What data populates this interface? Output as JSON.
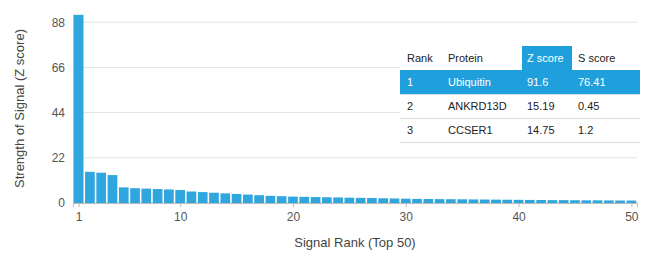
{
  "chart_data": {
    "type": "bar",
    "x_label": "Signal Rank (Top 50)",
    "y_label": "Strength of Signal (Z score)",
    "x": [
      1,
      2,
      3,
      4,
      5,
      6,
      7,
      8,
      9,
      10,
      11,
      12,
      13,
      14,
      15,
      16,
      17,
      18,
      19,
      20,
      21,
      22,
      23,
      24,
      25,
      26,
      27,
      28,
      29,
      30,
      31,
      32,
      33,
      34,
      35,
      36,
      37,
      38,
      39,
      40,
      41,
      42,
      43,
      44,
      45,
      46,
      47,
      48,
      49,
      50
    ],
    "values": [
      91.6,
      15.19,
      14.75,
      13.6,
      7.6,
      7.2,
      7,
      6.8,
      6.6,
      6.3,
      5.6,
      5.3,
      5,
      4.7,
      4.4,
      4.1,
      3.8,
      3.5,
      3.3,
      3.1,
      3,
      2.9,
      2.8,
      2.7,
      2.6,
      2.5,
      2.4,
      2.3,
      2.2,
      2.1,
      2,
      1.95,
      1.9,
      1.85,
      1.8,
      1.75,
      1.7,
      1.65,
      1.6,
      1.55,
      1.5,
      1.45,
      1.4,
      1.4,
      1.35,
      1.3,
      1.3,
      1.25,
      1.2,
      1.2
    ],
    "color": "#2fa6de",
    "xlim": [
      0.5,
      50.5
    ],
    "xticks": [
      1,
      10,
      20,
      30,
      40,
      50
    ],
    "ylim": [
      0,
      92
    ],
    "yticks": [
      0,
      22,
      44,
      66,
      88
    ],
    "grid": true
  },
  "table": {
    "header": [
      "Rank",
      "Protein",
      "Z score",
      "S score"
    ],
    "rows": [
      [
        1,
        "Ubiquitin",
        91.6,
        76.41
      ],
      [
        2,
        "ANKRD13D",
        15.19,
        0.45
      ],
      [
        3,
        "CCSER1",
        14.75,
        1.2
      ]
    ]
  }
}
